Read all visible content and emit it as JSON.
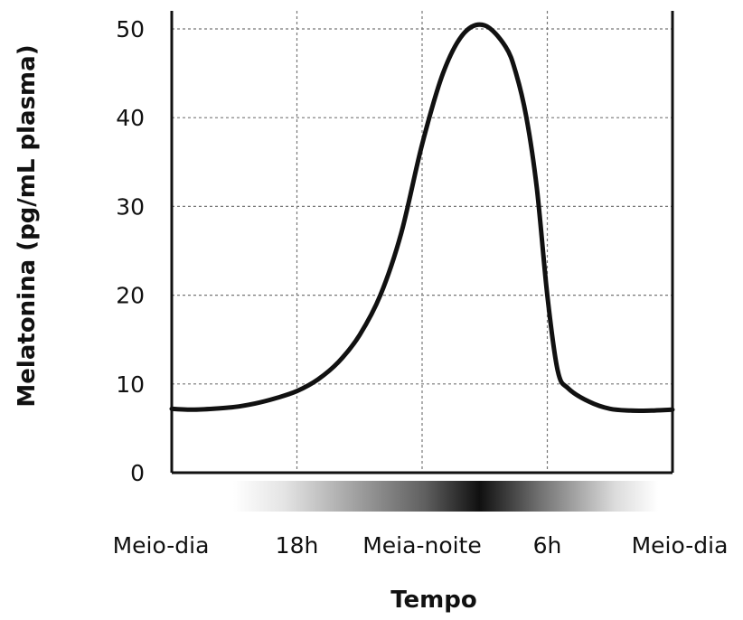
{
  "chart_data": {
    "type": "line",
    "title": "",
    "xlabel": "Tempo",
    "ylabel": "Melatonina (pg/mL plasma)",
    "x_ticks": [
      "Meio-dia",
      "18h",
      "Meia-noite",
      "6h",
      "Meio-dia"
    ],
    "x_tick_hours": [
      12,
      18,
      24,
      30,
      36
    ],
    "xlim": [
      12,
      36
    ],
    "ylim": [
      0,
      50
    ],
    "y_ticks": [
      0,
      10,
      20,
      30,
      40,
      50
    ],
    "grid": true,
    "grid_style": "dashed",
    "series": [
      {
        "name": "",
        "color": "#111111",
        "x": [
          12,
          13,
          14,
          15,
          16,
          17,
          18,
          19,
          20,
          21,
          22,
          23,
          24,
          25,
          26,
          27,
          28,
          28.5,
          29,
          29.5,
          30,
          30.5,
          31,
          32,
          33,
          34,
          35,
          36
        ],
        "y": [
          7.2,
          7.1,
          7.2,
          7.4,
          7.8,
          8.4,
          9.2,
          10.5,
          12.5,
          15.5,
          20,
          27,
          37,
          45,
          49.5,
          50.4,
          48,
          45,
          40,
          32,
          20,
          11.5,
          9.5,
          8,
          7.2,
          7,
          7,
          7.1
        ]
      }
    ],
    "light_bar": {
      "colors": [
        "#ffffff",
        "#101010"
      ],
      "darkest_at_hour": 26
    }
  }
}
